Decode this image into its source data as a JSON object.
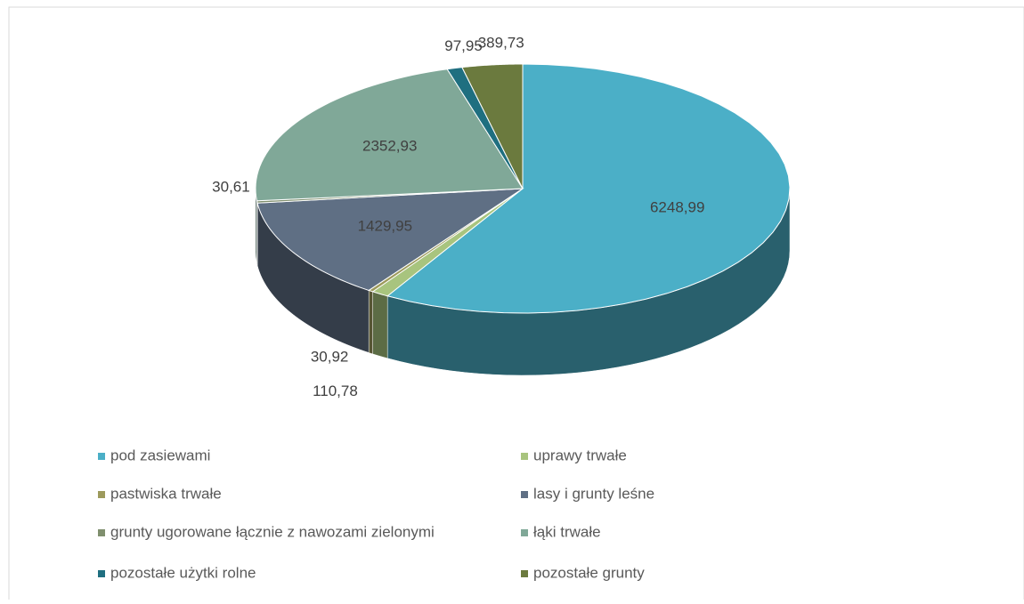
{
  "chart_data": {
    "type": "pie",
    "categories": [
      "pod zasiewami",
      "uprawy trwałe",
      "pastwiska trwałe",
      "lasy i grunty leśne",
      "grunty ugorowane łącznie z nawozami zielonymi",
      "łąki trwałe",
      "pozostałe użytki rolne",
      "pozostałe grunty"
    ],
    "values": [
      6248.99,
      110.78,
      30.92,
      1429.95,
      30.61,
      2352.93,
      97.95,
      389.73
    ],
    "value_labels": [
      "6248,99",
      "110,78",
      "30,92",
      "1429,95",
      "30,61",
      "2352,93",
      "97,95",
      "389,73"
    ],
    "colors": [
      "#4bafc7",
      "#a8c47e",
      "#9d9a5c",
      "#5f6f84",
      "#7f8f6e",
      "#80a898",
      "#1f6f80",
      "#6b7a3e"
    ],
    "legend": "bottom"
  }
}
